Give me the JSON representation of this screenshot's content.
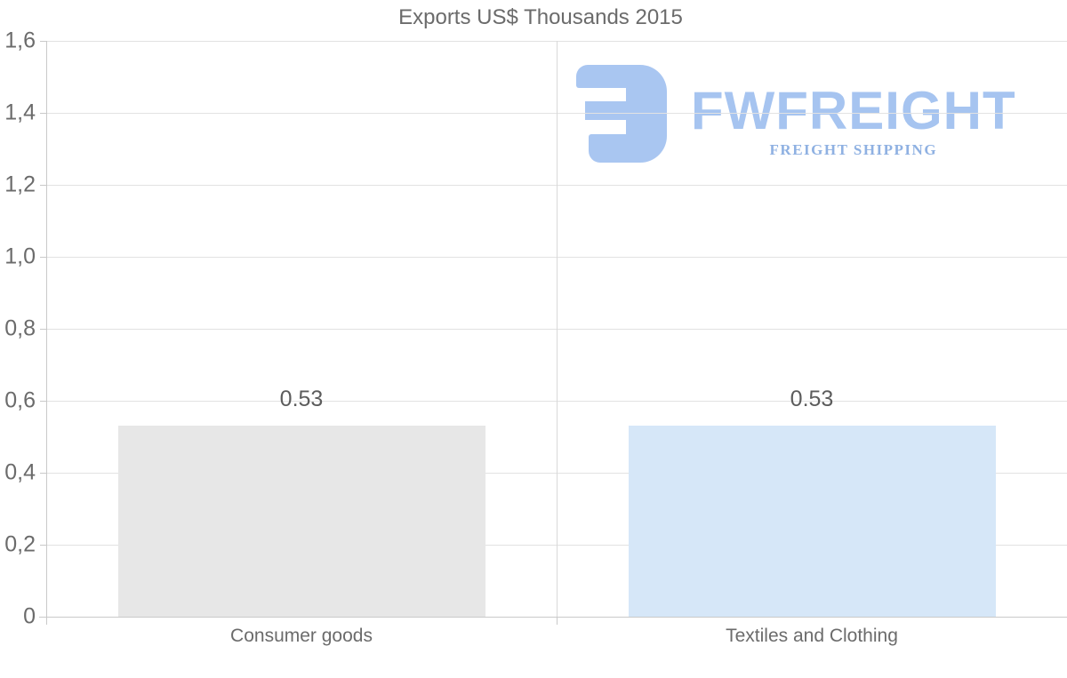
{
  "logo": {
    "name": "FWFREIGHT",
    "tagline": "FREIGHT SHIPPING",
    "mark_color": "#a9c6f1",
    "name_color": "#a6c4f0",
    "tagline_color": "#8fb1e2"
  },
  "colors": {
    "background": "#ffffff",
    "title_text": "#6b6b6b",
    "axis_text": "#6b6b6b",
    "value_text": "#5c5c5c",
    "gridline": "#e2e2e2",
    "axis_line": "#c9c9c9"
  },
  "chart_data": {
    "type": "bar",
    "title": "Exports US$ Thousands 2015",
    "categories": [
      "Consumer goods",
      "Textiles and Clothing"
    ],
    "values": [
      0.53,
      0.53
    ],
    "value_labels": [
      "0.53",
      "0.53"
    ],
    "bar_colors": [
      "#e7e7e7",
      "#d6e7f8"
    ],
    "ylim": [
      0,
      1.6
    ],
    "ytick_step": 0.2,
    "ytick_labels": [
      "0",
      "0,2",
      "0,4",
      "0,6",
      "0,8",
      "1,0",
      "1,2",
      "1,4",
      "1,6"
    ],
    "xlabel": "",
    "ylabel": "",
    "grid": true,
    "legend": false
  }
}
